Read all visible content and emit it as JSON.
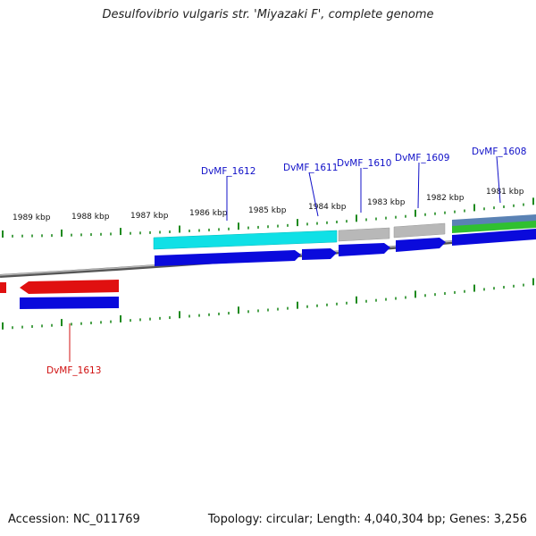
{
  "title": "Desulfovibrio vulgaris str. 'Miyazaki F', complete genome",
  "footer": {
    "accession": "Accession: NC_011769",
    "summary": "Topology: circular; Length: 4,040,304 bp; Genes: 3,256"
  },
  "kbp_labels": [
    "1989 kbp",
    "1988 kbp",
    "1987 kbp",
    "1986 kbp",
    "1985 kbp",
    "1984 kbp",
    "1983 kbp",
    "1982 kbp",
    "1981 kbp"
  ],
  "genes": {
    "g1612": "DvMF_1612",
    "g1611": "DvMF_1611",
    "g1610": "DvMF_1610",
    "g1609": "DvMF_1609",
    "g1608": "DvMF_1608",
    "g1613": "DvMF_1613"
  },
  "colors": {
    "backbone": "#7a7a7a",
    "tick": "#1f8a1f",
    "forward_gene": "#0a0adc",
    "reverse_gene": "#e01010",
    "cds_cyan": "#10e0e6",
    "cds_gray": "#b8b8b8",
    "feature_green": "#30c030",
    "feature_steel": "#5a82b4",
    "label_blue": "#1010c8",
    "label_red": "#d01010"
  }
}
